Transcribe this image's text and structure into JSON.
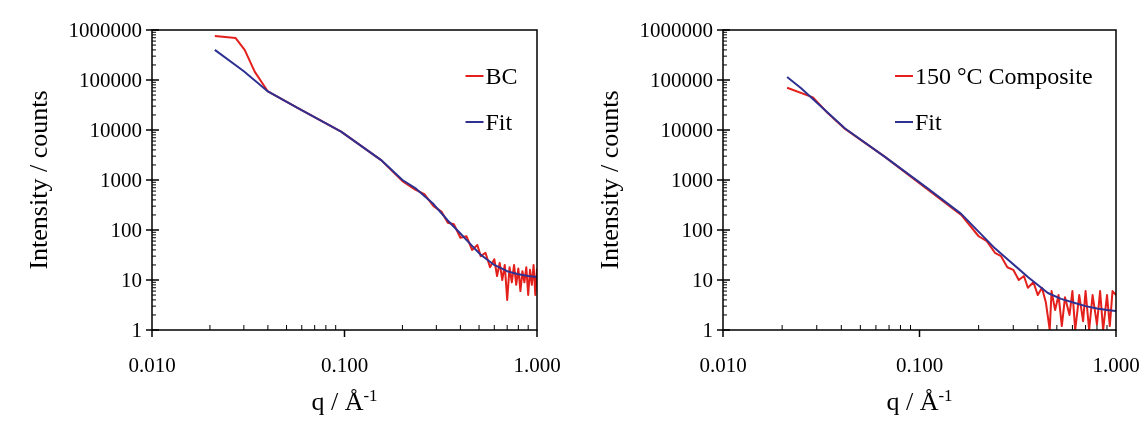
{
  "chart_data": [
    {
      "type": "line",
      "log": "xy",
      "xlabel": "q / Å$^{-1}$",
      "ylabel": "Intensity / counts",
      "legend": "top right",
      "xlim": [
        0.01,
        1
      ],
      "xticks": [
        {
          "value": 0.01,
          "label": "0.010"
        },
        {
          "value": 0.1,
          "label": "0.100"
        },
        {
          "value": 1,
          "label": "1.000"
        }
      ],
      "ylim": [
        1,
        1000000
      ],
      "yticks": [
        1,
        10,
        100,
        1000,
        10000,
        100000,
        1000000
      ],
      "series": [
        {
          "name": "BC",
          "color": "#e3201b",
          "x": [
            0.0212,
            0.0272,
            0.0303,
            0.0342,
            0.04,
            0.057,
            0.096,
            0.155,
            0.2,
            0.233,
            0.26,
            0.29,
            0.32,
            0.344,
            0.37,
            0.4,
            0.43,
            0.46,
            0.49,
            0.51,
            0.54,
            0.57,
            0.6,
            0.62,
            0.64,
            0.66,
            0.68,
            0.7,
            0.72,
            0.74,
            0.76,
            0.78,
            0.8,
            0.82,
            0.84,
            0.86,
            0.88,
            0.9,
            0.92,
            0.94,
            0.96,
            0.98,
            1
          ],
          "values": [
            760000,
            690000,
            400000,
            145000,
            59000,
            27800,
            9300,
            2500,
            950,
            640,
            520,
            300,
            230,
            140,
            130,
            70,
            75,
            40,
            50,
            30,
            35,
            18,
            26,
            12,
            22,
            10,
            20,
            4,
            18,
            9,
            20,
            8,
            17,
            6,
            15,
            9,
            18,
            5,
            16,
            8,
            20,
            5,
            17
          ]
        },
        {
          "name": "Fit",
          "color": "#2e3192",
          "x": [
            0.0212,
            0.03,
            0.04,
            0.057,
            0.096,
            0.155,
            0.2,
            0.233,
            0.29,
            0.344,
            0.4,
            0.46,
            0.51,
            0.6,
            0.7,
            0.8,
            0.9,
            1
          ],
          "values": [
            400000,
            150000,
            59000,
            27800,
            9300,
            2500,
            1000,
            690,
            330,
            155,
            85,
            48,
            32,
            20,
            15,
            13,
            12,
            11.5
          ]
        }
      ]
    },
    {
      "type": "line",
      "log": "xy",
      "xlabel": "q / Å$^{-1}$",
      "ylabel": "Intensity / counts",
      "legend": "top right",
      "xlim": [
        0.01,
        1
      ],
      "xticks": [
        {
          "value": 0.01,
          "label": "0.010"
        },
        {
          "value": 0.1,
          "label": "0.100"
        },
        {
          "value": 1,
          "label": "1.000"
        }
      ],
      "ylim": [
        1,
        1000000
      ],
      "yticks": [
        1,
        10,
        100,
        1000,
        10000,
        100000,
        1000000
      ],
      "series": [
        {
          "name": "150 °C Composite",
          "color": "#e3201b",
          "x": [
            0.0212,
            0.0287,
            0.034,
            0.0418,
            0.0667,
            0.11,
            0.163,
            0.2,
            0.22,
            0.242,
            0.26,
            0.28,
            0.3,
            0.32,
            0.34,
            0.356,
            0.38,
            0.4,
            0.42,
            0.44,
            0.46,
            0.47,
            0.49,
            0.51,
            0.53,
            0.55,
            0.58,
            0.6,
            0.62,
            0.65,
            0.68,
            0.7,
            0.73,
            0.76,
            0.8,
            0.83,
            0.86,
            0.9,
            0.93,
            0.96,
            1
          ],
          "values": [
            70000,
            45000,
            22000,
            10500,
            2900,
            650,
            200,
            75,
            60,
            35,
            30,
            18,
            16,
            10,
            12,
            7,
            9,
            5,
            7,
            3.5,
            1,
            6,
            2.5,
            5,
            1.2,
            4.5,
            2,
            6,
            1,
            5,
            1.5,
            6,
            1,
            5,
            1.3,
            6,
            1,
            5,
            1.2,
            6,
            5
          ]
        },
        {
          "name": "Fit",
          "color": "#2e3192",
          "x": [
            0.0212,
            0.0249,
            0.0418,
            0.0667,
            0.11,
            0.163,
            0.242,
            0.356,
            0.45,
            0.525,
            0.6,
            0.7,
            0.8,
            0.9,
            1
          ],
          "values": [
            115000,
            69000,
            10700,
            2900,
            680,
            210,
            43,
            11.5,
            5.5,
            4.2,
            3.6,
            3,
            2.7,
            2.5,
            2.4
          ]
        }
      ]
    }
  ]
}
